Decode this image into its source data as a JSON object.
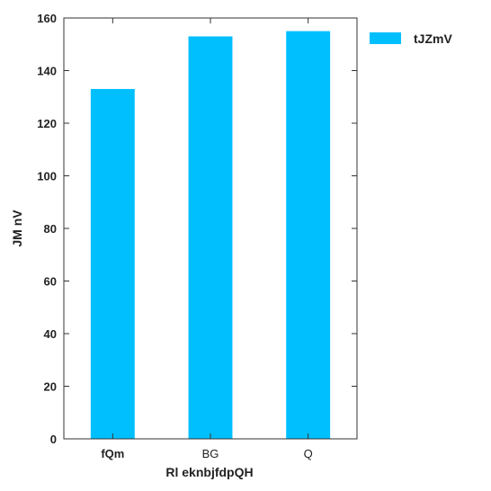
{
  "chart_data": {
    "type": "bar",
    "categories": [
      "fQm",
      "BG",
      "Q"
    ],
    "bold_categories": [
      true,
      false,
      false
    ],
    "series": [
      {
        "name": "tJZmV",
        "values": [
          133,
          153,
          155
        ],
        "color": "#00bfff"
      }
    ],
    "xlabel": "Rl eknbjfdpQH",
    "ylabel": "JM nV",
    "ylim": [
      0,
      160
    ],
    "yticks": [
      0,
      20,
      40,
      60,
      80,
      100,
      120,
      140,
      160
    ],
    "grid": false,
    "legend_position": "right"
  }
}
